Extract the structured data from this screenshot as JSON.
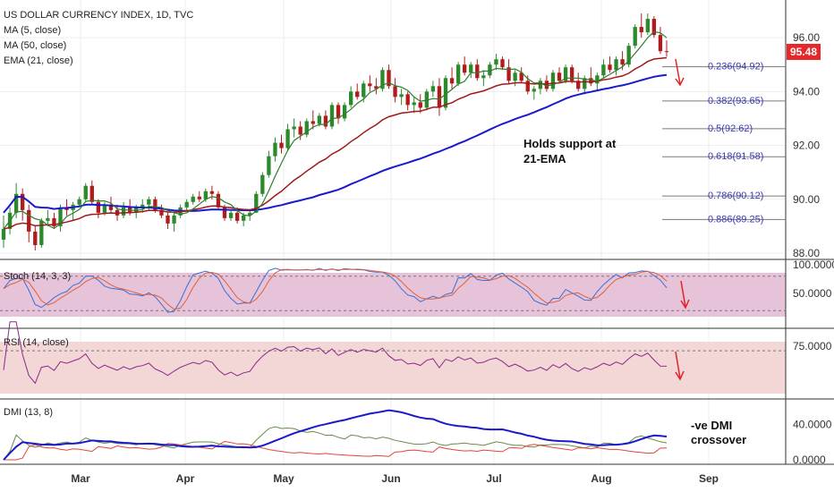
{
  "chart_data": {
    "type": "candlestick",
    "title": "US DOLLAR CURRENCY INDEX, 1D, TVC",
    "legend": [
      "MA (5, close)",
      "MA (50, close)",
      "EMA (21, close)"
    ],
    "last_price": "95.48",
    "price_axis": {
      "ticks": [
        "96.00",
        "94.00",
        "92.00",
        "90.00",
        "88.00"
      ],
      "ylim": [
        87.9,
        97.2
      ]
    },
    "x_axis": {
      "months": [
        "Mar",
        "Apr",
        "May",
        "Jun",
        "Jul",
        "Aug",
        "Sep"
      ]
    },
    "candles": [
      [
        88.5,
        89.4,
        88.2,
        88.9
      ],
      [
        88.9,
        89.7,
        88.7,
        89.5
      ],
      [
        89.5,
        90.6,
        89.3,
        90.2
      ],
      [
        90.2,
        90.4,
        89.2,
        89.6
      ],
      [
        89.6,
        89.8,
        88.4,
        88.8
      ],
      [
        88.8,
        89.0,
        88.1,
        88.3
      ],
      [
        88.3,
        89.3,
        88.2,
        89.2
      ],
      [
        89.2,
        89.6,
        89.0,
        89.3
      ],
      [
        89.3,
        89.5,
        88.9,
        89.0
      ],
      [
        89.0,
        89.8,
        88.8,
        89.7
      ],
      [
        89.7,
        90.0,
        89.4,
        89.6
      ],
      [
        89.6,
        89.9,
        89.2,
        89.8
      ],
      [
        89.8,
        90.1,
        89.7,
        90.0
      ],
      [
        90.0,
        90.6,
        89.9,
        90.5
      ],
      [
        90.5,
        90.7,
        89.8,
        89.9
      ],
      [
        89.9,
        90.0,
        89.3,
        89.5
      ],
      [
        89.5,
        89.9,
        89.4,
        89.8
      ],
      [
        89.8,
        90.1,
        89.5,
        89.6
      ],
      [
        89.6,
        89.8,
        89.2,
        89.4
      ],
      [
        89.4,
        89.9,
        89.3,
        89.7
      ],
      [
        89.7,
        90.0,
        89.4,
        89.5
      ],
      [
        89.5,
        89.8,
        89.3,
        89.7
      ],
      [
        89.7,
        90.0,
        89.5,
        89.8
      ],
      [
        89.8,
        90.1,
        89.6,
        90.0
      ],
      [
        90.0,
        90.1,
        89.5,
        89.6
      ],
      [
        89.6,
        89.8,
        89.3,
        89.4
      ],
      [
        89.4,
        89.5,
        88.9,
        89.1
      ],
      [
        89.1,
        89.5,
        88.8,
        89.4
      ],
      [
        89.4,
        89.8,
        89.3,
        89.7
      ],
      [
        89.7,
        90.0,
        89.6,
        89.9
      ],
      [
        89.9,
        90.2,
        89.8,
        90.1
      ],
      [
        90.1,
        90.3,
        89.9,
        90.0
      ],
      [
        90.0,
        90.4,
        89.9,
        90.3
      ],
      [
        90.3,
        90.5,
        90.0,
        90.2
      ],
      [
        90.2,
        90.3,
        89.6,
        89.7
      ],
      [
        89.7,
        89.8,
        89.2,
        89.3
      ],
      [
        89.3,
        89.6,
        89.2,
        89.5
      ],
      [
        89.5,
        89.7,
        89.1,
        89.2
      ],
      [
        89.2,
        89.5,
        89.0,
        89.4
      ],
      [
        89.4,
        89.6,
        89.2,
        89.5
      ],
      [
        89.5,
        90.3,
        89.5,
        90.2
      ],
      [
        90.2,
        91.0,
        90.1,
        90.9
      ],
      [
        90.9,
        91.8,
        90.8,
        91.6
      ],
      [
        91.6,
        92.3,
        91.4,
        92.1
      ],
      [
        92.1,
        92.4,
        91.7,
        91.9
      ],
      [
        91.9,
        92.8,
        91.8,
        92.6
      ],
      [
        92.6,
        93.0,
        92.3,
        92.7
      ],
      [
        92.7,
        92.9,
        92.2,
        92.4
      ],
      [
        92.4,
        93.0,
        92.3,
        92.9
      ],
      [
        92.9,
        93.3,
        92.6,
        92.8
      ],
      [
        92.8,
        93.2,
        92.7,
        93.1
      ],
      [
        93.1,
        93.3,
        92.6,
        92.7
      ],
      [
        92.7,
        93.6,
        92.6,
        93.5
      ],
      [
        93.5,
        93.6,
        92.8,
        93.0
      ],
      [
        93.0,
        93.6,
        92.9,
        93.5
      ],
      [
        93.5,
        94.2,
        93.4,
        94.0
      ],
      [
        94.0,
        94.3,
        93.7,
        93.8
      ],
      [
        93.8,
        94.4,
        93.6,
        94.3
      ],
      [
        94.3,
        94.6,
        94.0,
        94.2
      ],
      [
        94.2,
        94.5,
        93.9,
        94.1
      ],
      [
        94.1,
        94.9,
        94.0,
        94.8
      ],
      [
        94.8,
        95.0,
        94.1,
        94.2
      ],
      [
        94.2,
        94.5,
        93.6,
        93.8
      ],
      [
        93.8,
        94.1,
        93.5,
        93.9
      ],
      [
        93.9,
        94.0,
        93.3,
        93.5
      ],
      [
        93.5,
        93.8,
        93.2,
        93.6
      ],
      [
        93.6,
        93.9,
        93.2,
        93.4
      ],
      [
        93.4,
        94.1,
        93.3,
        94.0
      ],
      [
        94.0,
        94.4,
        93.8,
        94.2
      ],
      [
        94.2,
        94.5,
        93.1,
        93.4
      ],
      [
        93.4,
        94.6,
        93.3,
        94.5
      ],
      [
        94.5,
        94.9,
        94.1,
        94.3
      ],
      [
        94.3,
        95.1,
        94.2,
        95.0
      ],
      [
        95.0,
        95.3,
        94.6,
        94.7
      ],
      [
        94.7,
        95.1,
        94.5,
        95.0
      ],
      [
        95.0,
        95.2,
        94.4,
        94.5
      ],
      [
        94.5,
        94.8,
        94.2,
        94.6
      ],
      [
        94.6,
        95.1,
        94.5,
        95.0
      ],
      [
        95.0,
        95.4,
        94.8,
        95.2
      ],
      [
        95.2,
        95.3,
        94.8,
        94.9
      ],
      [
        94.9,
        95.2,
        94.3,
        94.4
      ],
      [
        94.4,
        94.8,
        94.2,
        94.7
      ],
      [
        94.7,
        94.9,
        94.3,
        94.4
      ],
      [
        94.4,
        94.6,
        93.9,
        94.0
      ],
      [
        94.0,
        94.2,
        93.7,
        94.1
      ],
      [
        94.1,
        94.5,
        93.9,
        94.4
      ],
      [
        94.4,
        94.6,
        94.0,
        94.1
      ],
      [
        94.1,
        94.8,
        94.0,
        94.7
      ],
      [
        94.7,
        94.9,
        94.3,
        94.4
      ],
      [
        94.4,
        95.0,
        94.3,
        94.9
      ],
      [
        94.9,
        95.0,
        94.3,
        94.4
      ],
      [
        94.4,
        94.7,
        94.0,
        94.1
      ],
      [
        94.1,
        94.6,
        93.9,
        94.5
      ],
      [
        94.5,
        94.9,
        94.2,
        94.3
      ],
      [
        94.3,
        94.7,
        94.0,
        94.6
      ],
      [
        94.6,
        95.2,
        94.5,
        95.0
      ],
      [
        95.0,
        95.3,
        94.7,
        94.8
      ],
      [
        94.8,
        95.3,
        94.6,
        95.2
      ],
      [
        95.2,
        95.5,
        94.8,
        95.0
      ],
      [
        95.0,
        95.8,
        94.9,
        95.7
      ],
      [
        95.7,
        96.5,
        95.6,
        96.4
      ],
      [
        96.4,
        96.9,
        96.0,
        96.2
      ],
      [
        96.2,
        96.9,
        96.1,
        96.7
      ],
      [
        96.7,
        96.8,
        96.0,
        96.1
      ],
      [
        96.1,
        96.4,
        95.4,
        95.5
      ],
      [
        95.5,
        95.9,
        95.3,
        95.48
      ]
    ],
    "series": [
      {
        "name": "MA (5, close)",
        "color": "#2e7d2e"
      },
      {
        "name": "MA (50, close)",
        "color": "#1a1acc"
      },
      {
        "name": "EMA (21, close)",
        "color": "#a01818"
      }
    ],
    "fib_levels": [
      {
        "label": "0.236(94.92)",
        "value": 94.92
      },
      {
        "label": "0.382(93.65)",
        "value": 93.65
      },
      {
        "label": "0.5(92.62)",
        "value": 92.62
      },
      {
        "label": "0.618(91.58)",
        "value": 91.58
      },
      {
        "label": "0.786(90.12)",
        "value": 90.12
      },
      {
        "label": "0.886(89.25)",
        "value": 89.25
      }
    ],
    "annotations": {
      "support": [
        "Holds support at",
        "21-EMA"
      ],
      "dmi": [
        "-ve DMI",
        "crossover"
      ]
    },
    "stoch": {
      "title": "Stoch (14, 3, 3)",
      "ticks": [
        "100.0000",
        "50.0000"
      ],
      "upper": 80,
      "lower": 20
    },
    "rsi": {
      "title": "RSI (14, close)",
      "ticks": [
        "75.0000"
      ],
      "upper": 70,
      "lower": 30
    },
    "dmi": {
      "title": "DMI (13, 8)",
      "ticks": [
        "40.0000",
        "0.0000"
      ]
    },
    "colors": {
      "up": "#2c8a2c",
      "down": "#b01c1c",
      "last_price_bg": "#e8272a",
      "stoch_band": "#e6c3d8",
      "rsi_band": "#f3d6d6"
    }
  }
}
